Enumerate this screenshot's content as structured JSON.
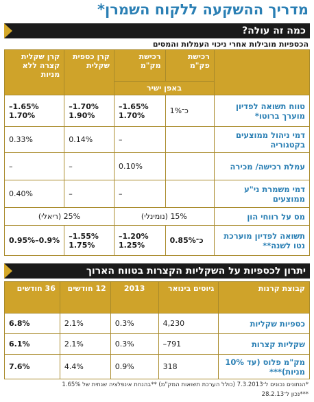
{
  "title": "מדריך ההשקעה ללקוח השמרן*",
  "section1": {
    "heading": "כמה זה עולה?",
    "subtitle": "הכספיות מובילות אחרי ניכוי העמלות והמסים",
    "columns": [
      "רכישת פק\"מ",
      "רכישת מק\"מ",
      "קרן כספית שקלית",
      "קרן שקלית קצרה ללא מניות"
    ],
    "group_label": "באפן ישיר",
    "rows": [
      {
        "label": "טווח תשואה לפדיון מוערך ברוטו*",
        "c1": "כ־1%",
        "c2": "1.65%–\n1.70%",
        "c3": "1.70%–\n1.90%",
        "c4": "1.65%–\n1.70%"
      },
      {
        "label": "דמי ניהול ממוצעים בקטגוריה",
        "c1": "",
        "c2": "–",
        "c3": "0.14%",
        "c4": "0.33%"
      },
      {
        "label": "עמלת רכישה/ מכירה",
        "c1": "",
        "c2": "0.10%",
        "c3": "–",
        "c4": "–"
      },
      {
        "label": "דמי משמרת ני\"ע ממוצעים",
        "c1": "",
        "c2": "–",
        "c3": "–",
        "c4": "0.40%"
      },
      {
        "label": "מס על רווחי הון",
        "c12": "15% (נומינלי)",
        "c34": "25% (ריאלי)"
      },
      {
        "label": "תשואה לפדיון מוערכת נטו לשנה**",
        "c1": "כ־0.85%",
        "c2": "1.20%–\n1.25%",
        "c3": "1.55%–\n1.75%",
        "c4": "0.9%–0.95%"
      }
    ]
  },
  "section2": {
    "heading": "יתרון לכספיות על השקליות הקצרות בטווח הארוך",
    "columns": [
      "קבוצת קרנות",
      "גיוסים בינואר",
      "2013",
      "12 חודשים",
      "36 חודשים"
    ],
    "rows": [
      {
        "label": "כספיות שקליות",
        "raised": "4,230",
        "y2013": "0.3%",
        "m12": "2.1%",
        "m36": "6.8%"
      },
      {
        "label": "שקליות קצרות",
        "raised": "791–",
        "y2013": "0.3%",
        "m12": "2.1%",
        "m36": "6.1%"
      },
      {
        "label": "מק\"מ פלוס (עד 10% מניות)***",
        "raised": "318",
        "y2013": "0.9%",
        "m12": "4.4%",
        "m36": "7.6%"
      }
    ]
  },
  "notes": {
    "n1": "*הנתונים נכונים ל־7.3.2013 (כולל הערכת תשואות המק\"מ) **בהנחת אינפלציה שנתית של 1.65%",
    "n2": "***נכון ל־28.2.13"
  },
  "colors": {
    "gold": "#cfa32a",
    "blue": "#2a7fb4",
    "black": "#1a1a1a"
  },
  "chart_data": {
    "type": "table",
    "title": "יתרון לכספיות על השקליות הקצרות בטווח הארוך",
    "categories": [
      "כספיות שקליות",
      "שקליות קצרות",
      "מק\"מ פלוס (עד 10% מניות)***"
    ],
    "series": [
      {
        "name": "גיוסים בינואר",
        "values": [
          4230,
          -791,
          318
        ]
      },
      {
        "name": "2013",
        "values": [
          0.3,
          0.3,
          0.9
        ]
      },
      {
        "name": "12 חודשים",
        "values": [
          2.1,
          2.1,
          4.4
        ]
      },
      {
        "name": "36 חודשים",
        "values": [
          6.8,
          6.1,
          7.6
        ]
      }
    ]
  }
}
